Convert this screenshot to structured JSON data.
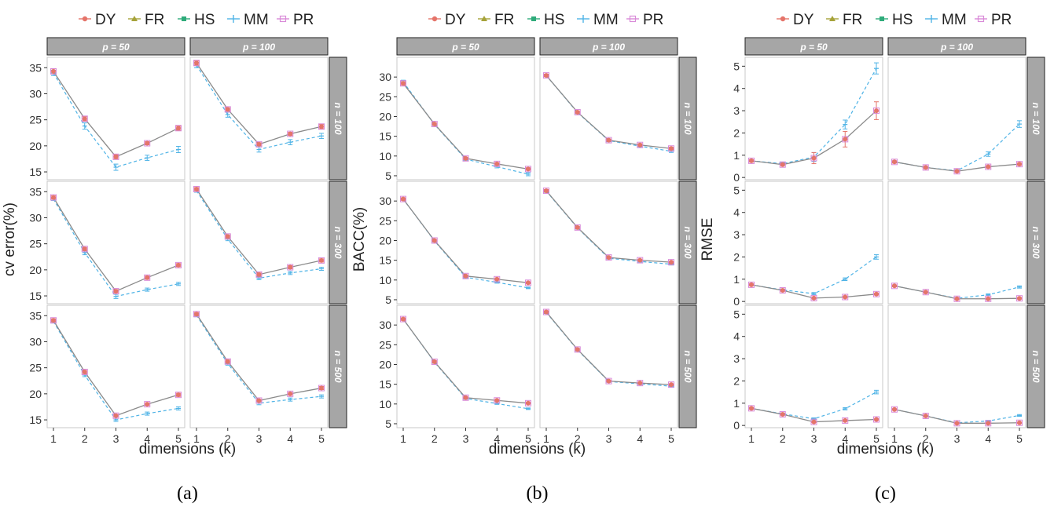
{
  "figure": {
    "legend_entries": [
      "DY",
      "FR",
      "HS",
      "MM",
      "PR"
    ],
    "strip_p": [
      "p = 50",
      "p = 100"
    ],
    "strip_n": [
      "n = 100",
      "n = 300",
      "n = 500"
    ],
    "xlabel": "dimensions (k)"
  },
  "colors": {
    "DY": "#e5746a",
    "FR": "#a6a239",
    "HS": "#2eab7a",
    "MM": "#4eb3e6",
    "PR": "#d98ad8",
    "combined_line": "#8a8a8a",
    "strip_bg": "#a6a6a6",
    "panel_border": "#c8c8c8"
  },
  "chart_data": [
    {
      "type": "line",
      "caption": "(a)",
      "ylabel": "cv error(%)",
      "ylim": [
        13.5,
        37
      ],
      "yticks": [
        15,
        20,
        25,
        30,
        35
      ],
      "x": [
        1,
        2,
        3,
        4,
        5
      ],
      "panels": [
        {
          "p": "p = 50",
          "n": "n = 100",
          "main": [
            34.3,
            25.2,
            17.9,
            20.5,
            23.4
          ],
          "mm": [
            34.0,
            23.8,
            15.9,
            17.7,
            19.3
          ],
          "err": [
            0.5,
            0.4,
            0.4,
            0.3,
            0.4
          ],
          "mm_err": [
            0.5,
            0.6,
            0.6,
            0.5,
            0.6
          ]
        },
        {
          "p": "p = 100",
          "n": "n = 100",
          "main": [
            35.9,
            27.0,
            20.3,
            22.3,
            23.7
          ],
          "mm": [
            35.5,
            26.0,
            19.3,
            20.7,
            21.9
          ],
          "err": [
            0.4,
            0.3,
            0.3,
            0.3,
            0.4
          ],
          "mm_err": [
            0.5,
            0.5,
            0.5,
            0.5,
            0.5
          ]
        },
        {
          "p": "p = 50",
          "n": "n = 300",
          "main": [
            33.9,
            24.0,
            15.9,
            18.5,
            20.9
          ],
          "mm": [
            33.6,
            23.3,
            14.9,
            16.2,
            17.3
          ],
          "err": [
            0.3,
            0.3,
            0.3,
            0.3,
            0.3
          ],
          "mm_err": [
            0.3,
            0.4,
            0.4,
            0.3,
            0.3
          ]
        },
        {
          "p": "p = 100",
          "n": "n = 300",
          "main": [
            35.5,
            26.4,
            19.1,
            20.5,
            21.8
          ],
          "mm": [
            35.2,
            25.9,
            18.4,
            19.4,
            20.2
          ],
          "err": [
            0.3,
            0.3,
            0.3,
            0.3,
            0.3
          ],
          "mm_err": [
            0.3,
            0.3,
            0.3,
            0.3,
            0.3
          ]
        },
        {
          "p": "p = 50",
          "n": "n = 500",
          "main": [
            34.1,
            24.2,
            15.8,
            18.0,
            19.8
          ],
          "mm": [
            33.9,
            23.6,
            15.0,
            16.2,
            17.2
          ],
          "err": [
            0.3,
            0.3,
            0.2,
            0.2,
            0.3
          ],
          "mm_err": [
            0.3,
            0.3,
            0.3,
            0.3,
            0.3
          ]
        },
        {
          "p": "p = 100",
          "n": "n = 500",
          "main": [
            35.3,
            26.2,
            18.7,
            20.0,
            21.1
          ],
          "mm": [
            35.1,
            25.8,
            18.2,
            18.9,
            19.5
          ],
          "err": [
            0.3,
            0.3,
            0.2,
            0.2,
            0.3
          ],
          "mm_err": [
            0.3,
            0.3,
            0.3,
            0.3,
            0.3
          ]
        }
      ]
    },
    {
      "type": "line",
      "caption": "(b)",
      "ylabel": "BACC(%)",
      "ylim": [
        4,
        35
      ],
      "yticks": [
        5,
        10,
        15,
        20,
        25,
        30
      ],
      "x": [
        1,
        2,
        3,
        4,
        5
      ],
      "panels": [
        {
          "p": "p = 50",
          "n": "n = 100",
          "main": [
            28.4,
            18.1,
            9.4,
            8.0,
            6.7
          ],
          "mm": [
            28.8,
            18.0,
            9.2,
            7.3,
            5.4
          ],
          "err": [
            0.4,
            0.3,
            0.3,
            0.3,
            0.3
          ],
          "mm_err": [
            0.4,
            0.3,
            0.3,
            0.3,
            0.4
          ]
        },
        {
          "p": "p = 100",
          "n": "n = 100",
          "main": [
            30.4,
            21.1,
            14.0,
            12.8,
            11.9
          ],
          "mm": [
            30.4,
            21.0,
            13.9,
            12.5,
            11.2
          ],
          "err": [
            0.3,
            0.3,
            0.3,
            0.3,
            0.3
          ],
          "mm_err": [
            0.3,
            0.3,
            0.3,
            0.3,
            0.3
          ]
        },
        {
          "p": "p = 50",
          "n": "n = 300",
          "main": [
            30.5,
            20.0,
            11.0,
            10.2,
            9.3
          ],
          "mm": [
            30.5,
            19.9,
            10.7,
            9.4,
            8.0
          ],
          "err": [
            0.3,
            0.3,
            0.2,
            0.2,
            0.2
          ],
          "mm_err": [
            0.3,
            0.3,
            0.2,
            0.2,
            0.2
          ]
        },
        {
          "p": "p = 100",
          "n": "n = 300",
          "main": [
            32.6,
            23.3,
            15.7,
            15.0,
            14.5
          ],
          "mm": [
            32.5,
            23.2,
            15.5,
            14.7,
            14.0
          ],
          "err": [
            0.3,
            0.3,
            0.2,
            0.2,
            0.2
          ],
          "mm_err": [
            0.3,
            0.3,
            0.2,
            0.2,
            0.2
          ]
        },
        {
          "p": "p = 50",
          "n": "n = 500",
          "main": [
            31.5,
            20.7,
            11.6,
            10.9,
            10.2
          ],
          "mm": [
            31.5,
            20.6,
            11.4,
            10.1,
            8.8
          ],
          "err": [
            0.3,
            0.3,
            0.2,
            0.2,
            0.2
          ],
          "mm_err": [
            0.3,
            0.3,
            0.2,
            0.2,
            0.2
          ]
        },
        {
          "p": "p = 100",
          "n": "n = 500",
          "main": [
            33.3,
            23.8,
            15.8,
            15.3,
            14.9
          ],
          "mm": [
            33.2,
            23.7,
            15.7,
            15.1,
            14.5
          ],
          "err": [
            0.3,
            0.3,
            0.2,
            0.2,
            0.2
          ],
          "mm_err": [
            0.3,
            0.3,
            0.2,
            0.2,
            0.2
          ]
        }
      ]
    },
    {
      "type": "line",
      "caption": "(c)",
      "ylabel": "RMSE",
      "ylim": [
        -0.1,
        5.4
      ],
      "yticks": [
        0,
        1,
        2,
        3,
        4,
        5
      ],
      "x": [
        1,
        2,
        3,
        4,
        5
      ],
      "panels": [
        {
          "p": "p = 50",
          "n": "n = 100",
          "main": [
            0.75,
            0.58,
            0.87,
            1.72,
            3.0
          ],
          "mm": [
            0.75,
            0.62,
            0.92,
            2.38,
            4.9
          ],
          "err": [
            0.05,
            0.05,
            0.25,
            0.35,
            0.4
          ],
          "mm_err": [
            0.05,
            0.05,
            0.2,
            0.2,
            0.25
          ]
        },
        {
          "p": "p = 100",
          "n": "n = 100",
          "main": [
            0.7,
            0.45,
            0.28,
            0.48,
            0.6
          ],
          "mm": [
            0.7,
            0.45,
            0.3,
            1.05,
            2.4
          ],
          "err": [
            0.05,
            0.05,
            0.04,
            0.05,
            0.05
          ],
          "mm_err": [
            0.05,
            0.05,
            0.05,
            0.1,
            0.15
          ]
        },
        {
          "p": "p = 50",
          "n": "n = 300",
          "main": [
            0.75,
            0.5,
            0.15,
            0.2,
            0.33
          ],
          "mm": [
            0.75,
            0.52,
            0.35,
            1.0,
            2.0
          ],
          "err": [
            0.04,
            0.04,
            0.03,
            0.03,
            0.04
          ],
          "mm_err": [
            0.04,
            0.04,
            0.05,
            0.06,
            0.1
          ]
        },
        {
          "p": "p = 100",
          "n": "n = 300",
          "main": [
            0.7,
            0.42,
            0.12,
            0.12,
            0.14
          ],
          "mm": [
            0.7,
            0.42,
            0.14,
            0.3,
            0.65
          ],
          "err": [
            0.04,
            0.04,
            0.03,
            0.03,
            0.03
          ],
          "mm_err": [
            0.04,
            0.04,
            0.03,
            0.04,
            0.05
          ]
        },
        {
          "p": "p = 50",
          "n": "n = 500",
          "main": [
            0.77,
            0.5,
            0.16,
            0.22,
            0.27
          ],
          "mm": [
            0.77,
            0.52,
            0.3,
            0.75,
            1.5
          ],
          "err": [
            0.04,
            0.04,
            0.03,
            0.03,
            0.03
          ],
          "mm_err": [
            0.04,
            0.04,
            0.04,
            0.05,
            0.08
          ]
        },
        {
          "p": "p = 100",
          "n": "n = 500",
          "main": [
            0.72,
            0.43,
            0.1,
            0.1,
            0.12
          ],
          "mm": [
            0.72,
            0.43,
            0.12,
            0.2,
            0.45
          ],
          "err": [
            0.03,
            0.03,
            0.02,
            0.02,
            0.02
          ],
          "mm_err": [
            0.03,
            0.03,
            0.03,
            0.03,
            0.04
          ]
        }
      ]
    }
  ]
}
